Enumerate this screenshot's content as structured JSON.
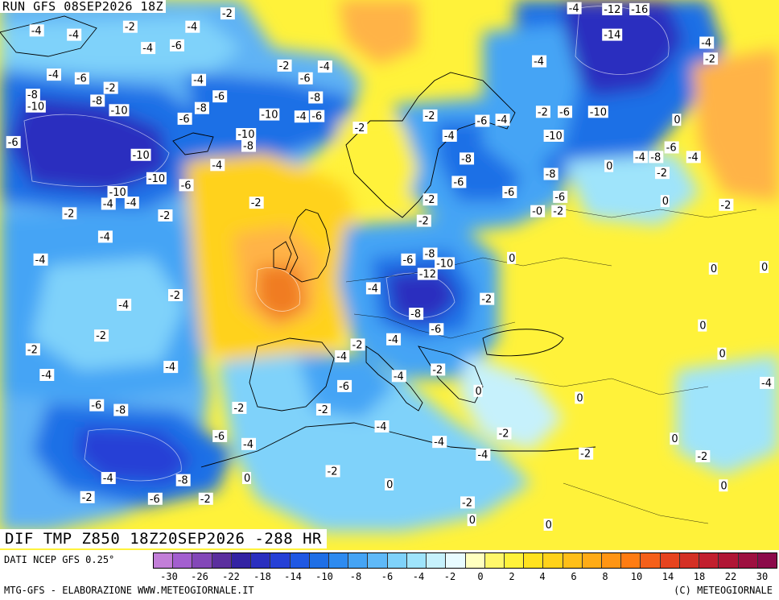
{
  "header": {
    "run_title": "RUN GFS 08SEP2026 18Z",
    "field_title": "DIF TMP Z850 18Z20SEP2026 -288 HR"
  },
  "footer": {
    "data_source": "DATI NCEP GFS 0.25°",
    "credit_left": "MTG-GFS - ELABORAZIONE WWW.METEOGIORNALE.IT",
    "credit_right": "(C) METEOGIORNALE"
  },
  "colors": {
    "deep_blue": "#2a2fbf",
    "blue": "#1f6fe6",
    "light_blue": "#5fb2f5",
    "cyan": "#9fe4fb",
    "yellow": "#fff23a",
    "orange": "#ffb347",
    "dark_orange": "#f07c22",
    "coastline": "#000000"
  },
  "scale": {
    "swatches": [
      "#c27ed8",
      "#a35fcf",
      "#8348b8",
      "#5b2f9e",
      "#3323a3",
      "#2a2fbf",
      "#2540d6",
      "#1f58e3",
      "#1f6fe6",
      "#2e8bf0",
      "#45a4f5",
      "#5fb9f8",
      "#7fd2fa",
      "#9fe4fb",
      "#c6f1fc",
      "#e8fbff",
      "#ffffbf",
      "#fff76a",
      "#fff23a",
      "#ffe21f",
      "#ffd21a",
      "#ffbf18",
      "#ffab16",
      "#ff9514",
      "#ff7c12",
      "#f5601a",
      "#e6441f",
      "#d43025",
      "#c21f2e",
      "#b01635",
      "#9e1040",
      "#8c0a4a"
    ],
    "ticks": [
      "-30",
      "-26",
      "-22",
      "-18",
      "-14",
      "-10",
      "-8",
      "-6",
      "-4",
      "-2",
      "0",
      "2",
      "4",
      "6",
      "8",
      "10",
      "14",
      "18",
      "22",
      "30"
    ]
  },
  "map_labels": [
    {
      "text": "-2",
      "lon": 0.285,
      "lat": 0.02
    },
    {
      "text": "-4",
      "lon": 0.73,
      "lat": 0.01
    },
    {
      "text": "-12",
      "lon": 0.775,
      "lat": 0.012
    },
    {
      "text": "-16",
      "lon": 0.81,
      "lat": 0.012
    },
    {
      "text": "-4",
      "lon": 0.04,
      "lat": 0.052
    },
    {
      "text": "-4",
      "lon": 0.088,
      "lat": 0.06
    },
    {
      "text": "-2",
      "lon": 0.16,
      "lat": 0.045
    },
    {
      "text": "-4",
      "lon": 0.24,
      "lat": 0.045
    },
    {
      "text": "-14",
      "lon": 0.775,
      "lat": 0.06
    },
    {
      "text": "-4",
      "lon": 0.9,
      "lat": 0.075
    },
    {
      "text": "-6",
      "lon": 0.22,
      "lat": 0.08
    },
    {
      "text": "-4",
      "lon": 0.183,
      "lat": 0.085
    },
    {
      "text": "-2",
      "lon": 0.905,
      "lat": 0.105
    },
    {
      "text": "-4",
      "lon": 0.685,
      "lat": 0.11
    },
    {
      "text": "-2",
      "lon": 0.358,
      "lat": 0.118
    },
    {
      "text": "-4",
      "lon": 0.41,
      "lat": 0.12
    },
    {
      "text": "-4",
      "lon": 0.062,
      "lat": 0.135
    },
    {
      "text": "-6",
      "lon": 0.098,
      "lat": 0.142
    },
    {
      "text": "-6",
      "lon": 0.385,
      "lat": 0.142
    },
    {
      "text": "-2",
      "lon": 0.135,
      "lat": 0.16
    },
    {
      "text": "-4",
      "lon": 0.248,
      "lat": 0.145
    },
    {
      "text": "-8",
      "lon": 0.035,
      "lat": 0.173
    },
    {
      "text": "-8",
      "lon": 0.118,
      "lat": 0.184
    },
    {
      "text": "-6",
      "lon": 0.275,
      "lat": 0.176
    },
    {
      "text": "-8",
      "lon": 0.398,
      "lat": 0.178
    },
    {
      "text": "-10",
      "lon": 0.035,
      "lat": 0.195
    },
    {
      "text": "-10",
      "lon": 0.142,
      "lat": 0.202
    },
    {
      "text": "-8",
      "lon": 0.252,
      "lat": 0.198
    },
    {
      "text": "-2",
      "lon": 0.69,
      "lat": 0.205
    },
    {
      "text": "-6",
      "lon": 0.718,
      "lat": 0.205
    },
    {
      "text": "-10",
      "lon": 0.757,
      "lat": 0.205
    },
    {
      "text": "-10",
      "lon": 0.335,
      "lat": 0.21
    },
    {
      "text": "-4",
      "lon": 0.38,
      "lat": 0.214
    },
    {
      "text": "-6",
      "lon": 0.4,
      "lat": 0.213
    },
    {
      "text": "-2",
      "lon": 0.545,
      "lat": 0.212
    },
    {
      "text": "-6",
      "lon": 0.612,
      "lat": 0.222
    },
    {
      "text": "-4",
      "lon": 0.638,
      "lat": 0.22
    },
    {
      "text": "-6",
      "lon": 0.23,
      "lat": 0.218
    },
    {
      "text": "0",
      "lon": 0.865,
      "lat": 0.22
    },
    {
      "text": "-2",
      "lon": 0.455,
      "lat": 0.235
    },
    {
      "text": "-10",
      "lon": 0.305,
      "lat": 0.247
    },
    {
      "text": "-4",
      "lon": 0.57,
      "lat": 0.25
    },
    {
      "text": "-10",
      "lon": 0.7,
      "lat": 0.25
    },
    {
      "text": "-6",
      "lon": 0.01,
      "lat": 0.262
    },
    {
      "text": "-8",
      "lon": 0.312,
      "lat": 0.269
    },
    {
      "text": "-6",
      "lon": 0.855,
      "lat": 0.272
    },
    {
      "text": "-10",
      "lon": 0.17,
      "lat": 0.286
    },
    {
      "text": "-4",
      "lon": 0.815,
      "lat": 0.29
    },
    {
      "text": "-8",
      "lon": 0.835,
      "lat": 0.29
    },
    {
      "text": "-4",
      "lon": 0.883,
      "lat": 0.29
    },
    {
      "text": "-8",
      "lon": 0.592,
      "lat": 0.293
    },
    {
      "text": "-4",
      "lon": 0.272,
      "lat": 0.305
    },
    {
      "text": "0",
      "lon": 0.778,
      "lat": 0.307
    },
    {
      "text": "-2",
      "lon": 0.843,
      "lat": 0.32
    },
    {
      "text": "-8",
      "lon": 0.7,
      "lat": 0.322
    },
    {
      "text": "-10",
      "lon": 0.19,
      "lat": 0.33
    },
    {
      "text": "-6",
      "lon": 0.232,
      "lat": 0.343
    },
    {
      "text": "-6",
      "lon": 0.582,
      "lat": 0.337
    },
    {
      "text": "-6",
      "lon": 0.647,
      "lat": 0.356
    },
    {
      "text": "-10",
      "lon": 0.14,
      "lat": 0.356
    },
    {
      "text": "-6",
      "lon": 0.712,
      "lat": 0.365
    },
    {
      "text": "0",
      "lon": 0.85,
      "lat": 0.373
    },
    {
      "text": "-4",
      "lon": 0.132,
      "lat": 0.378
    },
    {
      "text": "-4",
      "lon": 0.162,
      "lat": 0.376
    },
    {
      "text": "-2",
      "lon": 0.322,
      "lat": 0.376
    },
    {
      "text": "-2",
      "lon": 0.545,
      "lat": 0.37
    },
    {
      "text": "-2",
      "lon": 0.925,
      "lat": 0.38
    },
    {
      "text": "-0",
      "lon": 0.683,
      "lat": 0.392
    },
    {
      "text": "-2",
      "lon": 0.71,
      "lat": 0.392
    },
    {
      "text": "-2",
      "lon": 0.082,
      "lat": 0.396
    },
    {
      "text": "-2",
      "lon": 0.205,
      "lat": 0.4
    },
    {
      "text": "-2",
      "lon": 0.537,
      "lat": 0.41
    },
    {
      "text": "-4",
      "lon": 0.128,
      "lat": 0.44
    },
    {
      "text": "-8",
      "lon": 0.545,
      "lat": 0.472
    },
    {
      "text": "-6",
      "lon": 0.517,
      "lat": 0.483
    },
    {
      "text": "-10",
      "lon": 0.56,
      "lat": 0.49
    },
    {
      "text": "0",
      "lon": 0.653,
      "lat": 0.48
    },
    {
      "text": "-4",
      "lon": 0.045,
      "lat": 0.483
    },
    {
      "text": "-12",
      "lon": 0.538,
      "lat": 0.51
    },
    {
      "text": "0",
      "lon": 0.912,
      "lat": 0.5
    },
    {
      "text": "0",
      "lon": 0.978,
      "lat": 0.497
    },
    {
      "text": "-4",
      "lon": 0.472,
      "lat": 0.537
    },
    {
      "text": "-2",
      "lon": 0.618,
      "lat": 0.557
    },
    {
      "text": "-2",
      "lon": 0.218,
      "lat": 0.55
    },
    {
      "text": "-4",
      "lon": 0.152,
      "lat": 0.568
    },
    {
      "text": "-8",
      "lon": 0.527,
      "lat": 0.585
    },
    {
      "text": "-6",
      "lon": 0.553,
      "lat": 0.614
    },
    {
      "text": "0",
      "lon": 0.898,
      "lat": 0.607
    },
    {
      "text": "-2",
      "lon": 0.123,
      "lat": 0.626
    },
    {
      "text": "-4",
      "lon": 0.498,
      "lat": 0.633
    },
    {
      "text": "-2",
      "lon": 0.452,
      "lat": 0.643
    },
    {
      "text": "-2",
      "lon": 0.035,
      "lat": 0.652
    },
    {
      "text": "0",
      "lon": 0.923,
      "lat": 0.66
    },
    {
      "text": "-4",
      "lon": 0.432,
      "lat": 0.665
    },
    {
      "text": "-4",
      "lon": 0.212,
      "lat": 0.685
    },
    {
      "text": "-4",
      "lon": 0.053,
      "lat": 0.7
    },
    {
      "text": "-2",
      "lon": 0.555,
      "lat": 0.69
    },
    {
      "text": "-4",
      "lon": 0.505,
      "lat": 0.702
    },
    {
      "text": "-6",
      "lon": 0.435,
      "lat": 0.721
    },
    {
      "text": "0",
      "lon": 0.61,
      "lat": 0.73
    },
    {
      "text": "0",
      "lon": 0.74,
      "lat": 0.743
    },
    {
      "text": "-4",
      "lon": 0.992,
      "lat": 0.715
    },
    {
      "text": "-6",
      "lon": 0.117,
      "lat": 0.757
    },
    {
      "text": "-8",
      "lon": 0.148,
      "lat": 0.766
    },
    {
      "text": "-2",
      "lon": 0.3,
      "lat": 0.762
    },
    {
      "text": "-2",
      "lon": 0.408,
      "lat": 0.765
    },
    {
      "text": "-4",
      "lon": 0.483,
      "lat": 0.797
    },
    {
      "text": "-2",
      "lon": 0.64,
      "lat": 0.81
    },
    {
      "text": "-6",
      "lon": 0.275,
      "lat": 0.815
    },
    {
      "text": "-4",
      "lon": 0.312,
      "lat": 0.83
    },
    {
      "text": "-4",
      "lon": 0.557,
      "lat": 0.826
    },
    {
      "text": "0",
      "lon": 0.862,
      "lat": 0.82
    },
    {
      "text": "-4",
      "lon": 0.613,
      "lat": 0.85
    },
    {
      "text": "-2",
      "lon": 0.745,
      "lat": 0.848
    },
    {
      "text": "-2",
      "lon": 0.895,
      "lat": 0.853
    },
    {
      "text": "-2",
      "lon": 0.42,
      "lat": 0.881
    },
    {
      "text": "-4",
      "lon": 0.132,
      "lat": 0.894
    },
    {
      "text": "0",
      "lon": 0.313,
      "lat": 0.894
    },
    {
      "text": "-8",
      "lon": 0.228,
      "lat": 0.898
    },
    {
      "text": "0",
      "lon": 0.496,
      "lat": 0.906
    },
    {
      "text": "0",
      "lon": 0.925,
      "lat": 0.908
    },
    {
      "text": "-2",
      "lon": 0.105,
      "lat": 0.93
    },
    {
      "text": "-6",
      "lon": 0.192,
      "lat": 0.933
    },
    {
      "text": "-2",
      "lon": 0.257,
      "lat": 0.933
    },
    {
      "text": "-2",
      "lon": 0.593,
      "lat": 0.94
    },
    {
      "text": "0",
      "lon": 0.602,
      "lat": 0.973
    },
    {
      "text": "0",
      "lon": 0.7,
      "lat": 0.99
    }
  ]
}
